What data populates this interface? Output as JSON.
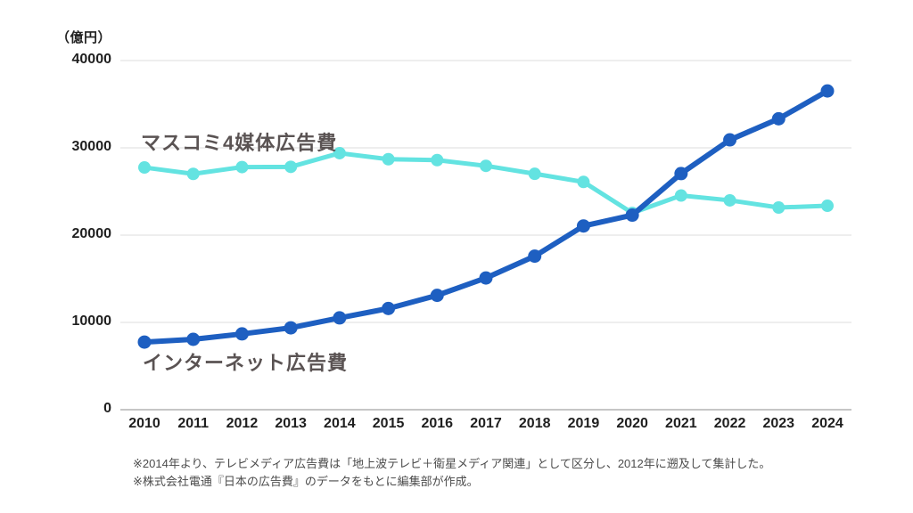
{
  "chart_data": {
    "type": "line",
    "title": "",
    "categories": [
      "2010",
      "2011",
      "2012",
      "2013",
      "2014",
      "2015",
      "2016",
      "2017",
      "2018",
      "2019",
      "2020",
      "2021",
      "2022",
      "2023",
      "2024"
    ],
    "series": [
      {
        "name": "マスコミ4媒体広告費",
        "color": "#63e3e1",
        "values": [
          27749,
          27016,
          27796,
          27825,
          29393,
          28699,
          28596,
          27938,
          27026,
          26094,
          22536,
          24538,
          23985,
          23161,
          23363
        ]
      },
      {
        "name": "インターネット広告費",
        "color": "#1e5fc1",
        "values": [
          7747,
          8062,
          8680,
          9381,
          10519,
          11594,
          13100,
          15094,
          17589,
          21048,
          22290,
          27052,
          30912,
          33330,
          36517
        ]
      }
    ],
    "xlabel": "",
    "ylabel": "（億円）",
    "ylim": [
      0,
      40000
    ],
    "yticks": [
      0,
      10000,
      20000,
      30000,
      40000
    ],
    "grid": true,
    "legend": "inline-labels",
    "colors": {
      "grid": "#e8e8e8",
      "axis": "#c6c6c6",
      "tick_text": "#1f1f1f",
      "series_label_text": "#5a5353"
    }
  },
  "labels": {
    "mass_media": "マスコミ4媒体広告費",
    "internet": "インターネット広告費"
  },
  "footnotes": [
    "※2014年より、テレビメディア広告費は「地上波テレビ＋衛星メディア関連」として区分し、2012年に遡及して集計した。",
    "※株式会社電通『日本の広告費』のデータをもとに編集部が作成。"
  ]
}
